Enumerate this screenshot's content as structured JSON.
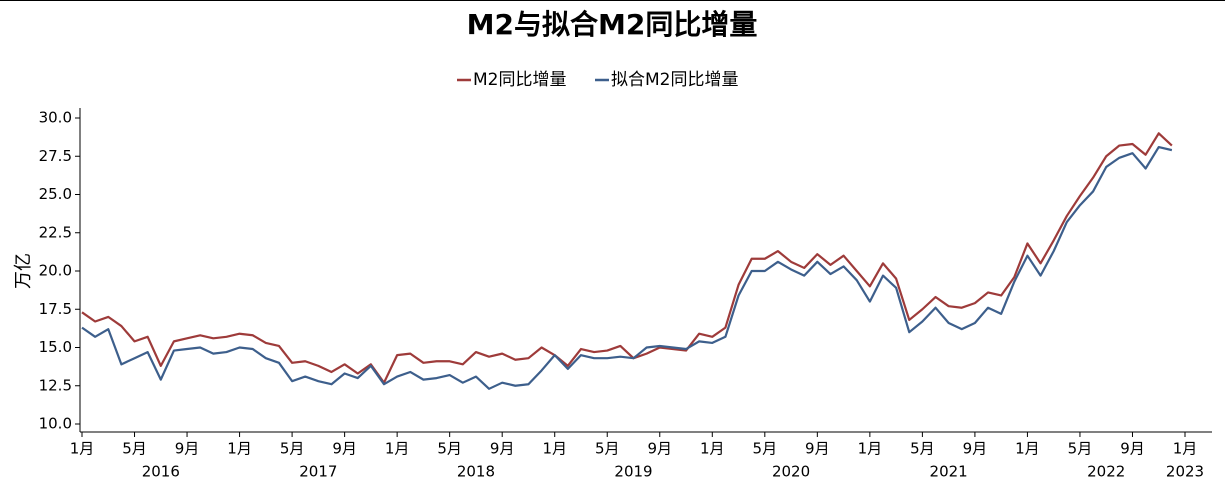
{
  "chart_data": {
    "type": "line",
    "title": "M2与拟合M2同比增量",
    "ylabel": "万亿",
    "x": [
      "2016-01",
      "2016-02",
      "2016-03",
      "2016-04",
      "2016-05",
      "2016-06",
      "2016-07",
      "2016-08",
      "2016-09",
      "2016-10",
      "2016-11",
      "2016-12",
      "2017-01",
      "2017-02",
      "2017-03",
      "2017-04",
      "2017-05",
      "2017-06",
      "2017-07",
      "2017-08",
      "2017-09",
      "2017-10",
      "2017-11",
      "2017-12",
      "2018-01",
      "2018-02",
      "2018-03",
      "2018-04",
      "2018-05",
      "2018-06",
      "2018-07",
      "2018-08",
      "2018-09",
      "2018-10",
      "2018-11",
      "2018-12",
      "2019-01",
      "2019-02",
      "2019-03",
      "2019-04",
      "2019-05",
      "2019-06",
      "2019-07",
      "2019-08",
      "2019-09",
      "2019-10",
      "2019-11",
      "2019-12",
      "2020-01",
      "2020-02",
      "2020-03",
      "2020-04",
      "2020-05",
      "2020-06",
      "2020-07",
      "2020-08",
      "2020-09",
      "2020-10",
      "2020-11",
      "2020-12",
      "2021-01",
      "2021-02",
      "2021-03",
      "2021-04",
      "2021-05",
      "2021-06",
      "2021-07",
      "2021-08",
      "2021-09",
      "2021-10",
      "2021-11",
      "2021-12",
      "2022-01",
      "2022-02",
      "2022-03",
      "2022-04",
      "2022-05",
      "2022-06",
      "2022-07",
      "2022-08",
      "2022-09",
      "2022-10",
      "2022-11",
      "2022-12"
    ],
    "series": [
      {
        "name": "M2同比增量",
        "color": "#9e3b3a",
        "values": [
          17.3,
          16.7,
          17.0,
          16.4,
          15.4,
          15.7,
          13.8,
          15.4,
          15.6,
          15.8,
          15.6,
          15.7,
          15.9,
          15.8,
          15.3,
          15.1,
          14.0,
          14.1,
          13.8,
          13.4,
          13.9,
          13.3,
          13.9,
          12.7,
          14.5,
          14.6,
          14.0,
          14.1,
          14.1,
          13.9,
          14.7,
          14.4,
          14.6,
          14.2,
          14.3,
          15.0,
          14.5,
          13.8,
          14.9,
          14.7,
          14.8,
          15.1,
          14.3,
          14.6,
          15.0,
          14.9,
          14.8,
          15.9,
          15.7,
          16.3,
          19.1,
          20.8,
          20.8,
          21.3,
          20.6,
          20.2,
          21.1,
          20.4,
          21.0,
          20.0,
          19.0,
          20.5,
          19.5,
          16.8,
          17.5,
          18.3,
          17.7,
          17.6,
          17.9,
          18.6,
          18.4,
          19.6,
          21.8,
          20.5,
          22.0,
          23.6,
          24.9,
          26.1,
          27.5,
          28.2,
          28.3,
          27.6,
          29.0,
          28.2
        ]
      },
      {
        "name": "拟合M2同比增量",
        "color": "#3d5f8c",
        "values": [
          16.3,
          15.7,
          16.2,
          13.9,
          14.3,
          14.7,
          12.9,
          14.8,
          14.9,
          15.0,
          14.6,
          14.7,
          15.0,
          14.9,
          14.3,
          14.0,
          12.8,
          13.1,
          12.8,
          12.6,
          13.3,
          13.0,
          13.8,
          12.6,
          13.1,
          13.4,
          12.9,
          13.0,
          13.2,
          12.7,
          13.1,
          12.3,
          12.7,
          12.5,
          12.6,
          13.5,
          14.5,
          13.6,
          14.5,
          14.3,
          14.3,
          14.4,
          14.3,
          15.0,
          15.1,
          15.0,
          14.9,
          15.4,
          15.3,
          15.7,
          18.4,
          20.0,
          20.0,
          20.6,
          20.1,
          19.7,
          20.6,
          19.8,
          20.3,
          19.4,
          18.0,
          19.7,
          18.9,
          16.0,
          16.7,
          17.6,
          16.6,
          16.2,
          16.6,
          17.6,
          17.2,
          19.3,
          21.0,
          19.7,
          21.3,
          23.2,
          24.3,
          25.2,
          26.8,
          27.4,
          27.7,
          26.7,
          28.1,
          27.9
        ]
      }
    ],
    "xlim": [
      "2016-01",
      "2023-01"
    ],
    "xticks": [
      {
        "value": "2016-01",
        "label": "1月"
      },
      {
        "value": "2016-05",
        "label": "5月"
      },
      {
        "value": "2016-09",
        "label": "9月"
      },
      {
        "value": "2017-01",
        "label": "1月"
      },
      {
        "value": "2017-05",
        "label": "5月"
      },
      {
        "value": "2017-09",
        "label": "9月"
      },
      {
        "value": "2018-01",
        "label": "1月"
      },
      {
        "value": "2018-05",
        "label": "5月"
      },
      {
        "value": "2018-09",
        "label": "9月"
      },
      {
        "value": "2019-01",
        "label": "1月"
      },
      {
        "value": "2019-05",
        "label": "5月"
      },
      {
        "value": "2019-09",
        "label": "9月"
      },
      {
        "value": "2020-01",
        "label": "1月"
      },
      {
        "value": "2020-05",
        "label": "5月"
      },
      {
        "value": "2020-09",
        "label": "9月"
      },
      {
        "value": "2021-01",
        "label": "1月"
      },
      {
        "value": "2021-05",
        "label": "5月"
      },
      {
        "value": "2021-09",
        "label": "9月"
      },
      {
        "value": "2022-01",
        "label": "1月"
      },
      {
        "value": "2022-05",
        "label": "5月"
      },
      {
        "value": "2022-09",
        "label": "9月"
      },
      {
        "value": "2023-01",
        "label": "1月"
      }
    ],
    "year_labels": [
      {
        "value": "2016-07",
        "label": "2016"
      },
      {
        "value": "2017-07",
        "label": "2017"
      },
      {
        "value": "2018-07",
        "label": "2018"
      },
      {
        "value": "2019-07",
        "label": "2019"
      },
      {
        "value": "2020-07",
        "label": "2020"
      },
      {
        "value": "2021-07",
        "label": "2021"
      },
      {
        "value": "2022-07",
        "label": "2022"
      },
      {
        "value": "2023-01",
        "label": "2023"
      }
    ],
    "ylim": [
      10,
      30
    ],
    "yticks": [
      {
        "value": 10,
        "label": "10.0"
      },
      {
        "value": 12.5,
        "label": "12.5"
      },
      {
        "value": 15,
        "label": "15.0"
      },
      {
        "value": 17.5,
        "label": "17.5"
      },
      {
        "value": 20,
        "label": "20.0"
      },
      {
        "value": 22.5,
        "label": "22.5"
      },
      {
        "value": 25,
        "label": "25.0"
      },
      {
        "value": 27.5,
        "label": "27.5"
      },
      {
        "value": 30,
        "label": "30.0"
      }
    ],
    "legend": "top",
    "grid": false
  }
}
